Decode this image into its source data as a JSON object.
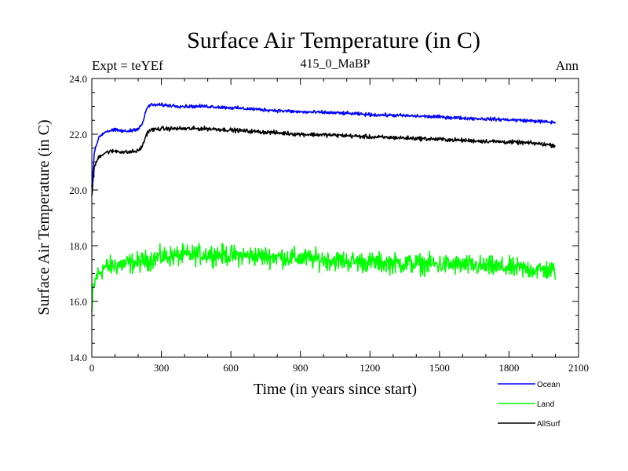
{
  "chart_data": {
    "type": "line",
    "title": "Surface Air Temperature (in C)",
    "subtitle": "415_0_MaBP",
    "left_label": "Expt = teYEf",
    "right_label": "Ann",
    "xlabel": "Time (in years since start)",
    "ylabel": "Surface Air Temperature (in C)",
    "xlim": [
      0,
      2100
    ],
    "ylim": [
      14.0,
      24.0
    ],
    "x_ticks": [
      0,
      300,
      600,
      900,
      1200,
      1500,
      1800,
      2100
    ],
    "x_tick_labels": [
      "0",
      "300",
      "600",
      "900",
      "1200",
      "1500",
      "1800",
      "2100"
    ],
    "y_ticks": [
      14,
      16,
      18,
      20,
      22,
      24
    ],
    "y_tick_labels": [
      "14.0",
      "16.0",
      "18.0",
      "20.0",
      "22.0",
      "24.0"
    ],
    "grid": false,
    "legend_position": "bottom-right",
    "series": [
      {
        "name": "Ocean",
        "color": "#0000ff",
        "noise": 0.05,
        "x": [
          0,
          10,
          30,
          60,
          100,
          150,
          200,
          220,
          235,
          250,
          300,
          400,
          500,
          600,
          700,
          800,
          900,
          1000,
          1100,
          1200,
          1300,
          1400,
          1500,
          1600,
          1700,
          1800,
          1900,
          2000
        ],
        "values": [
          20.1,
          21.3,
          21.9,
          22.1,
          22.15,
          22.1,
          22.2,
          22.4,
          22.9,
          23.05,
          23.05,
          23.0,
          23.0,
          22.95,
          22.9,
          22.85,
          22.8,
          22.78,
          22.75,
          22.7,
          22.68,
          22.65,
          22.62,
          22.58,
          22.55,
          22.52,
          22.48,
          22.42
        ]
      },
      {
        "name": "Land",
        "color": "#00ff00",
        "noise": 0.3,
        "x": [
          0,
          5,
          20,
          50,
          100,
          200,
          300,
          400,
          500,
          600,
          800,
          1000,
          1200,
          1400,
          1600,
          1800,
          2000
        ],
        "values": [
          15.6,
          16.4,
          16.9,
          17.2,
          17.3,
          17.4,
          17.6,
          17.65,
          17.7,
          17.65,
          17.6,
          17.5,
          17.4,
          17.35,
          17.3,
          17.2,
          17.1
        ]
      },
      {
        "name": "AllSurf",
        "color": "#000000",
        "noise": 0.06,
        "x": [
          0,
          10,
          30,
          60,
          100,
          150,
          200,
          220,
          235,
          250,
          300,
          400,
          500,
          600,
          700,
          800,
          900,
          1000,
          1100,
          1200,
          1300,
          1400,
          1500,
          1600,
          1700,
          1800,
          1900,
          2000
        ],
        "values": [
          19.8,
          20.8,
          21.2,
          21.35,
          21.4,
          21.35,
          21.4,
          21.6,
          22.0,
          22.15,
          22.2,
          22.2,
          22.2,
          22.15,
          22.1,
          22.05,
          22.0,
          21.98,
          21.95,
          21.9,
          21.88,
          21.85,
          21.82,
          21.78,
          21.75,
          21.72,
          21.68,
          21.6
        ]
      }
    ]
  }
}
